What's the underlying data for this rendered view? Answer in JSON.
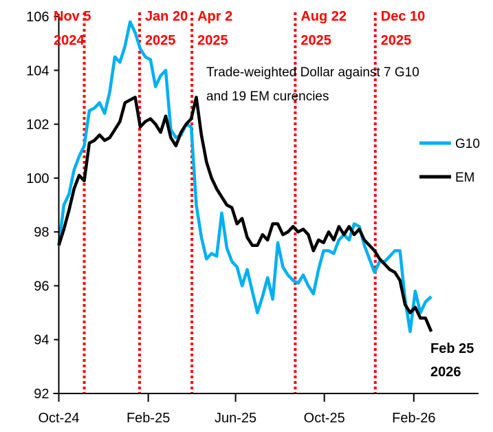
{
  "chart_data": {
    "type": "line",
    "title": "",
    "xlabel": "",
    "ylabel": "",
    "ylim": [
      92,
      106
    ],
    "xlim": [
      "2024-10-01",
      "2026-05-01"
    ],
    "grid": false,
    "legend_placement": "right",
    "y_ticks": [
      "92",
      "94",
      "96",
      "98",
      "100",
      "102",
      "104",
      "106"
    ],
    "x_ticks": [
      {
        "date": "2024-10-01",
        "label": "Oct-24"
      },
      {
        "date": "2025-02-01",
        "label": "Feb-25"
      },
      {
        "date": "2025-06-01",
        "label": "Jun-25"
      },
      {
        "date": "2025-10-01",
        "label": "Oct-25"
      },
      {
        "date": "2026-02-01",
        "label": "Feb-26"
      }
    ],
    "events": [
      {
        "date": "2024-11-05",
        "line1": "Nov 5",
        "line2": "2024"
      },
      {
        "date": "2025-01-20",
        "line1": "Jan 20",
        "line2": "2025"
      },
      {
        "date": "2025-04-02",
        "line1": "Apr 2",
        "line2": "2025"
      },
      {
        "date": "2025-08-22",
        "line1": "Aug 22",
        "line2": "2025"
      },
      {
        "date": "2025-12-10",
        "line1": "Dec 10",
        "line2": "2025"
      }
    ],
    "annotation": {
      "line1": "Trade-weighted Dollar against 7 G10",
      "line2": "and 19 EM curencies"
    },
    "end_label": {
      "line1": "Feb 25",
      "line2": "2026"
    },
    "x": [
      "2024-10-01",
      "2024-10-08",
      "2024-10-15",
      "2024-10-22",
      "2024-10-29",
      "2024-11-05",
      "2024-11-12",
      "2024-11-19",
      "2024-11-26",
      "2024-12-03",
      "2024-12-10",
      "2024-12-17",
      "2024-12-24",
      "2024-12-31",
      "2025-01-07",
      "2025-01-14",
      "2025-01-21",
      "2025-01-28",
      "2025-02-04",
      "2025-02-11",
      "2025-02-18",
      "2025-02-25",
      "2025-03-04",
      "2025-03-11",
      "2025-03-18",
      "2025-03-25",
      "2025-04-01",
      "2025-04-08",
      "2025-04-15",
      "2025-04-22",
      "2025-04-29",
      "2025-05-06",
      "2025-05-13",
      "2025-05-20",
      "2025-05-27",
      "2025-06-03",
      "2025-06-10",
      "2025-06-17",
      "2025-06-24",
      "2025-07-01",
      "2025-07-08",
      "2025-07-15",
      "2025-07-22",
      "2025-07-29",
      "2025-08-05",
      "2025-08-12",
      "2025-08-19",
      "2025-08-26",
      "2025-09-02",
      "2025-09-09",
      "2025-09-16",
      "2025-09-23",
      "2025-09-30",
      "2025-10-07",
      "2025-10-14",
      "2025-10-21",
      "2025-10-28",
      "2025-11-04",
      "2025-11-11",
      "2025-11-18",
      "2025-11-25",
      "2025-12-02",
      "2025-12-09",
      "2025-12-16",
      "2025-12-23",
      "2025-12-30",
      "2026-01-06",
      "2026-01-13",
      "2026-01-20",
      "2026-01-27",
      "2026-02-03",
      "2026-02-10",
      "2026-02-17",
      "2026-02-25"
    ],
    "series": [
      {
        "name": "G10",
        "color": "#00b0f0",
        "values": [
          97.5,
          99.0,
          99.4,
          100.3,
          100.8,
          101.2,
          102.5,
          102.6,
          102.8,
          102.4,
          103.2,
          104.5,
          104.3,
          104.9,
          105.8,
          105.4,
          104.8,
          104.5,
          104.4,
          103.4,
          103.8,
          104.0,
          101.8,
          101.5,
          101.6,
          102.0,
          101.9,
          99.0,
          97.8,
          97.0,
          97.2,
          97.1,
          98.7,
          97.4,
          96.9,
          96.7,
          96.0,
          96.6,
          95.8,
          95.0,
          95.6,
          96.3,
          95.5,
          97.6,
          96.7,
          96.4,
          96.2,
          96.1,
          96.4,
          96.0,
          95.7,
          96.6,
          97.3,
          97.3,
          97.2,
          97.7,
          97.9,
          97.7,
          98.3,
          98.2,
          97.5,
          97.0,
          96.5,
          96.9,
          96.9,
          97.1,
          97.3,
          97.3,
          95.5,
          94.3,
          95.8,
          95.0,
          95.4,
          95.6
        ]
      },
      {
        "name": "EM",
        "color": "#000000",
        "values": [
          97.5,
          98.1,
          98.8,
          99.6,
          100.1,
          99.9,
          101.3,
          101.4,
          101.6,
          101.4,
          101.5,
          101.8,
          102.1,
          102.8,
          102.9,
          103.0,
          101.9,
          102.1,
          102.2,
          102.0,
          101.7,
          102.3,
          101.5,
          101.2,
          101.7,
          102.0,
          102.2,
          103.0,
          101.6,
          100.6,
          100.0,
          99.6,
          99.3,
          99.0,
          98.9,
          98.3,
          98.5,
          97.8,
          97.5,
          97.5,
          97.9,
          97.7,
          98.3,
          98.3,
          97.9,
          98.0,
          98.2,
          98.0,
          98.1,
          97.9,
          97.3,
          97.7,
          97.6,
          98.0,
          97.7,
          98.2,
          97.9,
          98.2,
          97.9,
          98.1,
          97.7,
          97.5,
          97.3,
          97.0,
          96.8,
          96.6,
          96.5,
          96.2,
          95.3,
          95.0,
          95.2,
          94.8,
          94.8,
          94.3
        ]
      }
    ],
    "event_line_color": "#ff0000"
  }
}
